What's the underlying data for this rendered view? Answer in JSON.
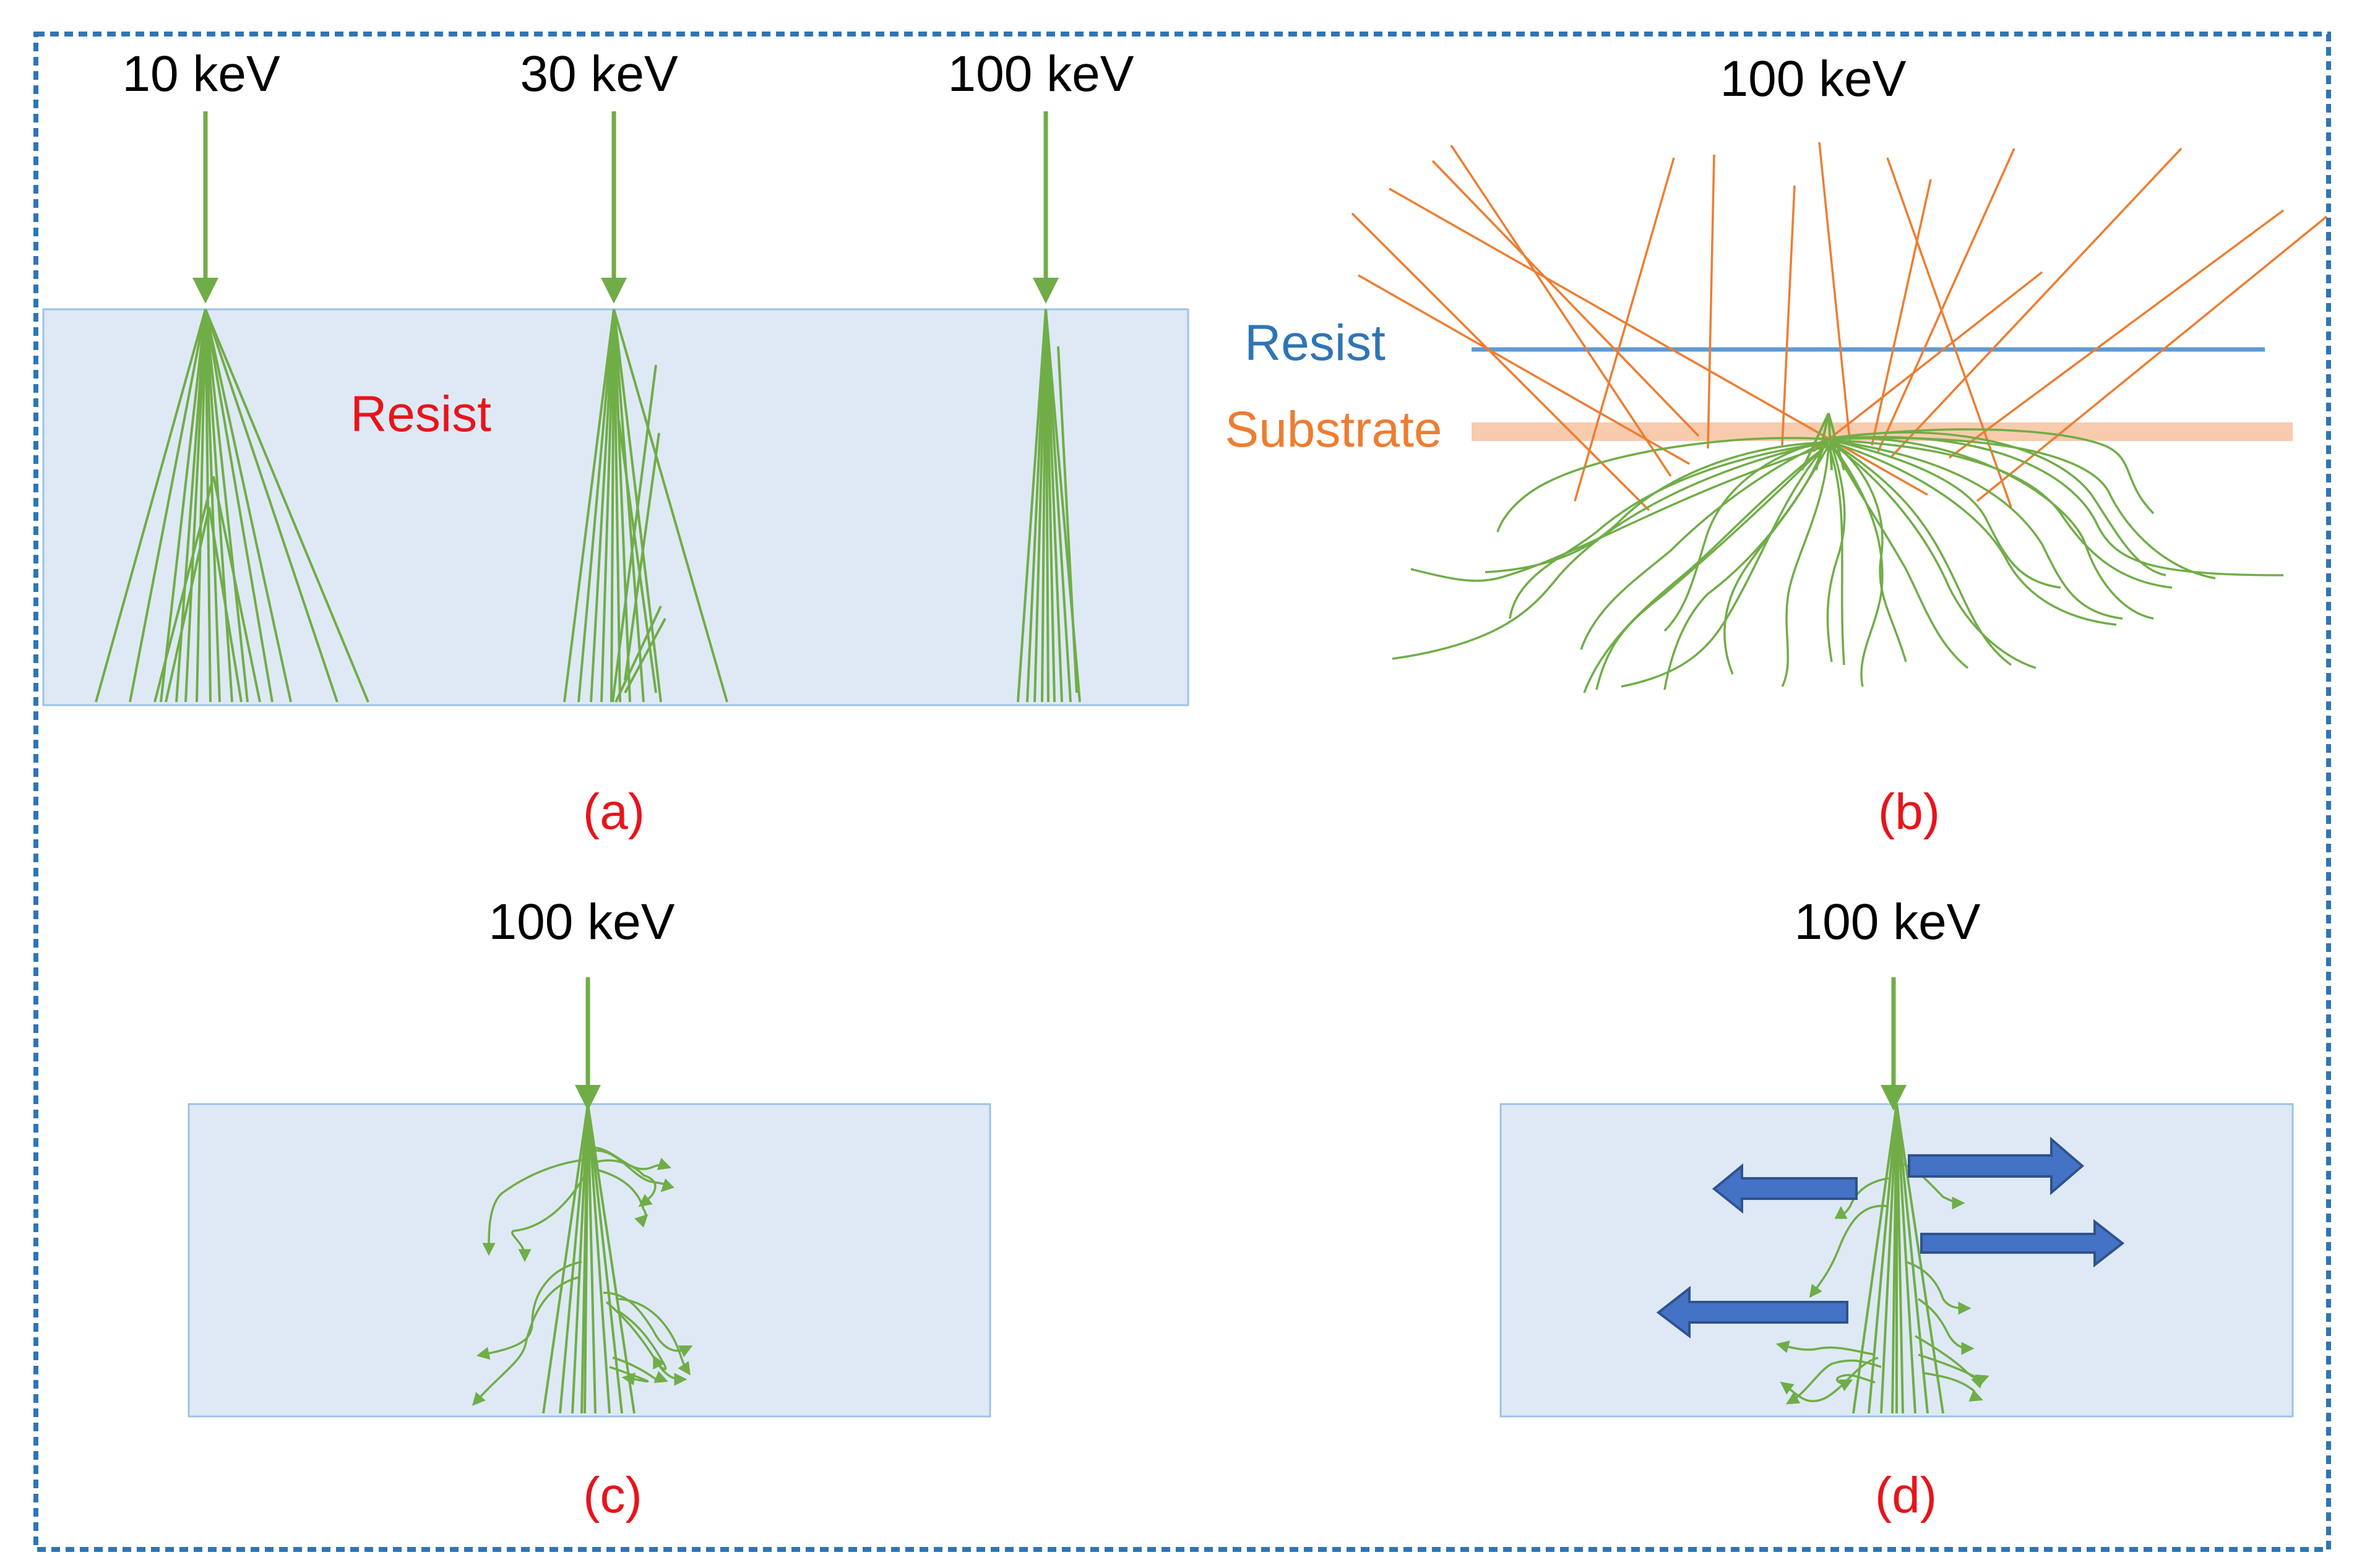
{
  "colors": {
    "beam": "#70ad47",
    "backscatter": "#ed7d31",
    "resist_fill": "#dee9f5",
    "resist_border": "#9dc3e6",
    "panel_label": "#e8141b",
    "resist_line": "#2e75b6",
    "substrate_line": "#f8cbad",
    "arrow_fill": "#4472c4",
    "frame": "#2e75b6"
  },
  "panel_a": {
    "energies": [
      "10 keV",
      "30 keV",
      "100 keV"
    ],
    "resist_label": "Resist",
    "caption": "(a)"
  },
  "panel_b": {
    "energy": "100 keV",
    "resist_label": "Resist",
    "substrate_label": "Substrate",
    "caption": "(b)"
  },
  "panel_c": {
    "energy": "100 keV",
    "caption": "(c)"
  },
  "panel_d": {
    "energy": "100 keV",
    "caption": "(d)"
  }
}
